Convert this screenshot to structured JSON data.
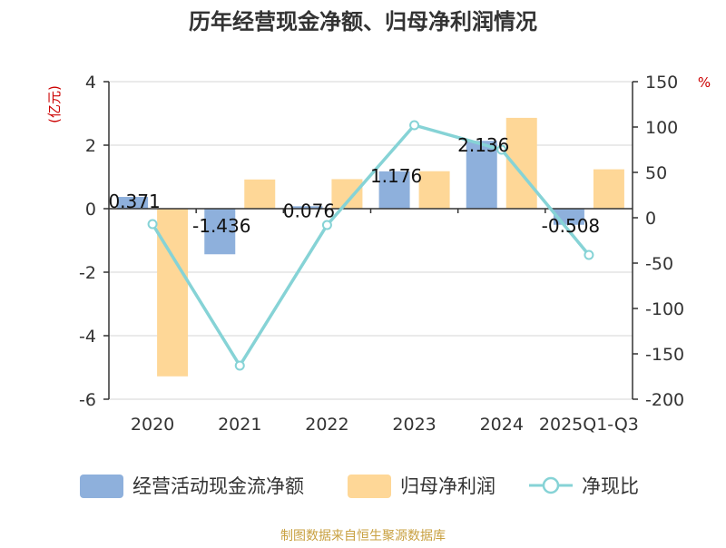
{
  "chart_data": {
    "type": "bar",
    "title": "历年经营现金净额、归母净利润情况",
    "categories": [
      "2020",
      "2021",
      "2022",
      "2023",
      "2024",
      "2025Q1-Q3"
    ],
    "left_axis": {
      "label": "(亿元)",
      "ylim": [
        -6,
        4
      ],
      "ticks": [
        4,
        2,
        0,
        -2,
        -4,
        -6
      ]
    },
    "right_axis": {
      "label": "%",
      "ylim": [
        -200,
        150
      ],
      "ticks": [
        150,
        100,
        50,
        0,
        -50,
        -100,
        -150,
        -200
      ]
    },
    "series": [
      {
        "name": "经营活动现金流净额",
        "type": "bar",
        "axis": "left",
        "values": [
          0.371,
          -1.436,
          0.076,
          1.176,
          2.136,
          -0.508
        ],
        "labels": [
          "0.371",
          "-1.436",
          "0.076",
          "1.176",
          "2.136",
          "-0.508"
        ],
        "color": "#8eb0dc"
      },
      {
        "name": "归母净利润",
        "type": "bar",
        "axis": "left",
        "values": [
          -5.28,
          0.92,
          0.93,
          1.18,
          2.86,
          1.24
        ],
        "color": "#fed797"
      },
      {
        "name": "净现比",
        "type": "line",
        "axis": "right",
        "values": [
          -7,
          -163,
          -8,
          102,
          75,
          -41
        ],
        "color": "#86d3d6"
      }
    ],
    "legend_position": "bottom",
    "grid": true
  },
  "source_note": "制图数据来自恒生聚源数据库"
}
